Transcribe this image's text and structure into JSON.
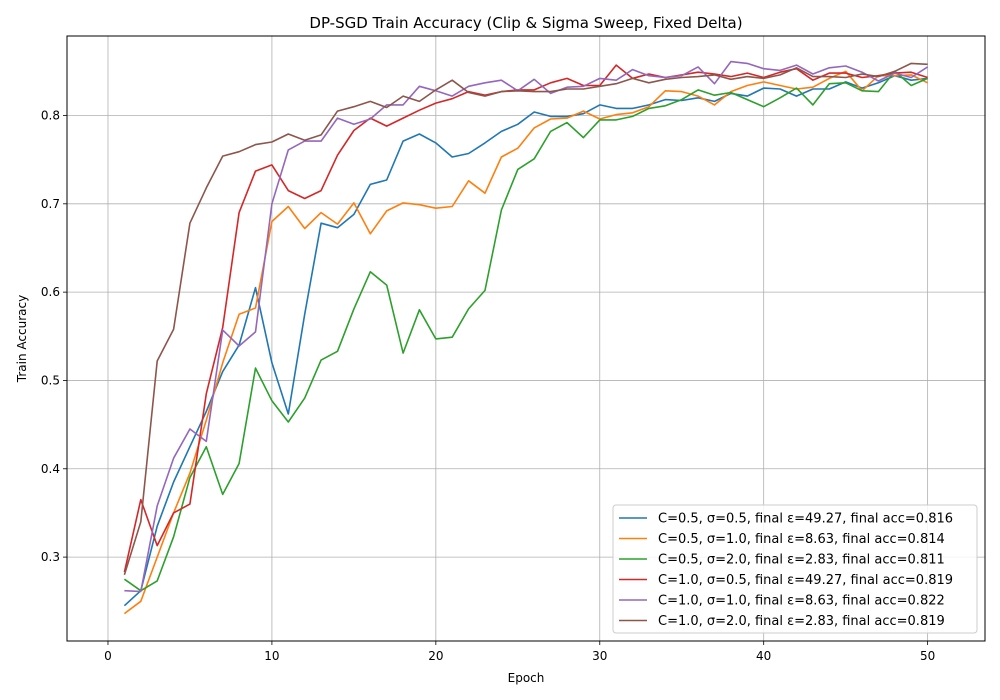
{
  "chart_data": {
    "type": "line",
    "title": "DP-SGD Train Accuracy (Clip & Sigma Sweep, Fixed Delta)",
    "xlabel": "Epoch",
    "ylabel": "Train Accuracy",
    "xlim": [
      -2.5,
      53.5
    ],
    "ylim": [
      0.205,
      0.89
    ],
    "xticks": [
      0,
      10,
      20,
      30,
      40,
      50
    ],
    "yticks": [
      0.3,
      0.4,
      0.5,
      0.6,
      0.7,
      0.8
    ],
    "ytick_labels": [
      "0.3",
      "0.4",
      "0.5",
      "0.6",
      "0.7",
      "0.8"
    ],
    "grid": true,
    "legend_position": "lower-right",
    "x": [
      1,
      2,
      3,
      4,
      5,
      6,
      7,
      8,
      9,
      10,
      11,
      12,
      13,
      14,
      15,
      16,
      17,
      18,
      19,
      20,
      21,
      22,
      23,
      24,
      25,
      26,
      27,
      28,
      29,
      30,
      31,
      32,
      33,
      34,
      35,
      36,
      37,
      38,
      39,
      40,
      41,
      42,
      43,
      44,
      45,
      46,
      47,
      48,
      49,
      50
    ],
    "series": [
      {
        "name": "C=0.5, σ=0.5, final ε=49.27, final acc=0.816",
        "color": "#1f77b4",
        "values": [
          0.245,
          0.262,
          0.335,
          0.385,
          0.425,
          0.465,
          0.51,
          0.54,
          0.605,
          0.52,
          0.462,
          0.575,
          0.678,
          0.673,
          0.688,
          0.722,
          0.727,
          0.771,
          0.779,
          0.769,
          0.753,
          0.757,
          0.769,
          0.782,
          0.79,
          0.804,
          0.799,
          0.799,
          0.802,
          0.812,
          0.808,
          0.808,
          0.812,
          0.818,
          0.817,
          0.82,
          0.816,
          0.825,
          0.822,
          0.831,
          0.83,
          0.822,
          0.83,
          0.83,
          0.838,
          0.831,
          0.837,
          0.845,
          0.84,
          0.842
        ]
      },
      {
        "name": "C=0.5, σ=1.0, final ε=8.63, final acc=0.814",
        "color": "#ff7f0e",
        "values": [
          0.236,
          0.25,
          0.3,
          0.35,
          0.395,
          0.455,
          0.52,
          0.575,
          0.582,
          0.68,
          0.697,
          0.672,
          0.69,
          0.677,
          0.701,
          0.666,
          0.692,
          0.701,
          0.699,
          0.695,
          0.697,
          0.726,
          0.712,
          0.753,
          0.763,
          0.786,
          0.796,
          0.797,
          0.805,
          0.796,
          0.801,
          0.803,
          0.81,
          0.828,
          0.827,
          0.822,
          0.812,
          0.827,
          0.834,
          0.838,
          0.834,
          0.83,
          0.832,
          0.842,
          0.85,
          0.828,
          0.845,
          0.845,
          0.846,
          0.837
        ]
      },
      {
        "name": "C=0.5, σ=2.0, final ε=2.83, final acc=0.811",
        "color": "#2ca02c",
        "values": [
          0.275,
          0.262,
          0.273,
          0.323,
          0.39,
          0.425,
          0.371,
          0.406,
          0.514,
          0.477,
          0.453,
          0.48,
          0.523,
          0.533,
          0.581,
          0.623,
          0.608,
          0.531,
          0.58,
          0.547,
          0.549,
          0.581,
          0.602,
          0.693,
          0.739,
          0.751,
          0.782,
          0.792,
          0.775,
          0.795,
          0.795,
          0.799,
          0.808,
          0.811,
          0.818,
          0.829,
          0.823,
          0.826,
          0.818,
          0.81,
          0.82,
          0.831,
          0.812,
          0.836,
          0.837,
          0.828,
          0.827,
          0.85,
          0.834,
          0.842
        ]
      },
      {
        "name": "C=1.0, σ=0.5, final ε=49.27, final acc=0.819",
        "color": "#d62728",
        "values": [
          0.283,
          0.365,
          0.313,
          0.35,
          0.36,
          0.485,
          0.56,
          0.69,
          0.737,
          0.744,
          0.715,
          0.706,
          0.715,
          0.755,
          0.783,
          0.797,
          0.788,
          0.797,
          0.806,
          0.814,
          0.819,
          0.827,
          0.823,
          0.827,
          0.829,
          0.829,
          0.837,
          0.842,
          0.834,
          0.834,
          0.857,
          0.842,
          0.847,
          0.843,
          0.846,
          0.849,
          0.847,
          0.844,
          0.848,
          0.843,
          0.849,
          0.853,
          0.84,
          0.848,
          0.848,
          0.843,
          0.845,
          0.848,
          0.849,
          0.843
        ]
      },
      {
        "name": "C=1.0, σ=1.0, final ε=8.63, final acc=0.822",
        "color": "#9467bd",
        "values": [
          0.262,
          0.261,
          0.358,
          0.412,
          0.445,
          0.431,
          0.557,
          0.539,
          0.555,
          0.7,
          0.761,
          0.771,
          0.771,
          0.797,
          0.79,
          0.796,
          0.812,
          0.812,
          0.833,
          0.828,
          0.822,
          0.833,
          0.837,
          0.84,
          0.828,
          0.841,
          0.825,
          0.832,
          0.833,
          0.842,
          0.84,
          0.852,
          0.845,
          0.843,
          0.845,
          0.855,
          0.836,
          0.861,
          0.859,
          0.853,
          0.851,
          0.857,
          0.847,
          0.854,
          0.856,
          0.849,
          0.839,
          0.848,
          0.843,
          0.855
        ]
      },
      {
        "name": "C=1.0, σ=2.0, final ε=2.83, final acc=0.819",
        "color": "#8c564b",
        "values": [
          0.28,
          0.34,
          0.522,
          0.558,
          0.678,
          0.718,
          0.754,
          0.759,
          0.767,
          0.77,
          0.779,
          0.772,
          0.778,
          0.805,
          0.81,
          0.816,
          0.809,
          0.822,
          0.816,
          0.829,
          0.84,
          0.826,
          0.822,
          0.827,
          0.828,
          0.827,
          0.827,
          0.83,
          0.83,
          0.833,
          0.836,
          0.842,
          0.837,
          0.841,
          0.843,
          0.844,
          0.846,
          0.841,
          0.844,
          0.842,
          0.846,
          0.854,
          0.844,
          0.844,
          0.843,
          0.847,
          0.844,
          0.85,
          0.859,
          0.858
        ]
      }
    ]
  }
}
